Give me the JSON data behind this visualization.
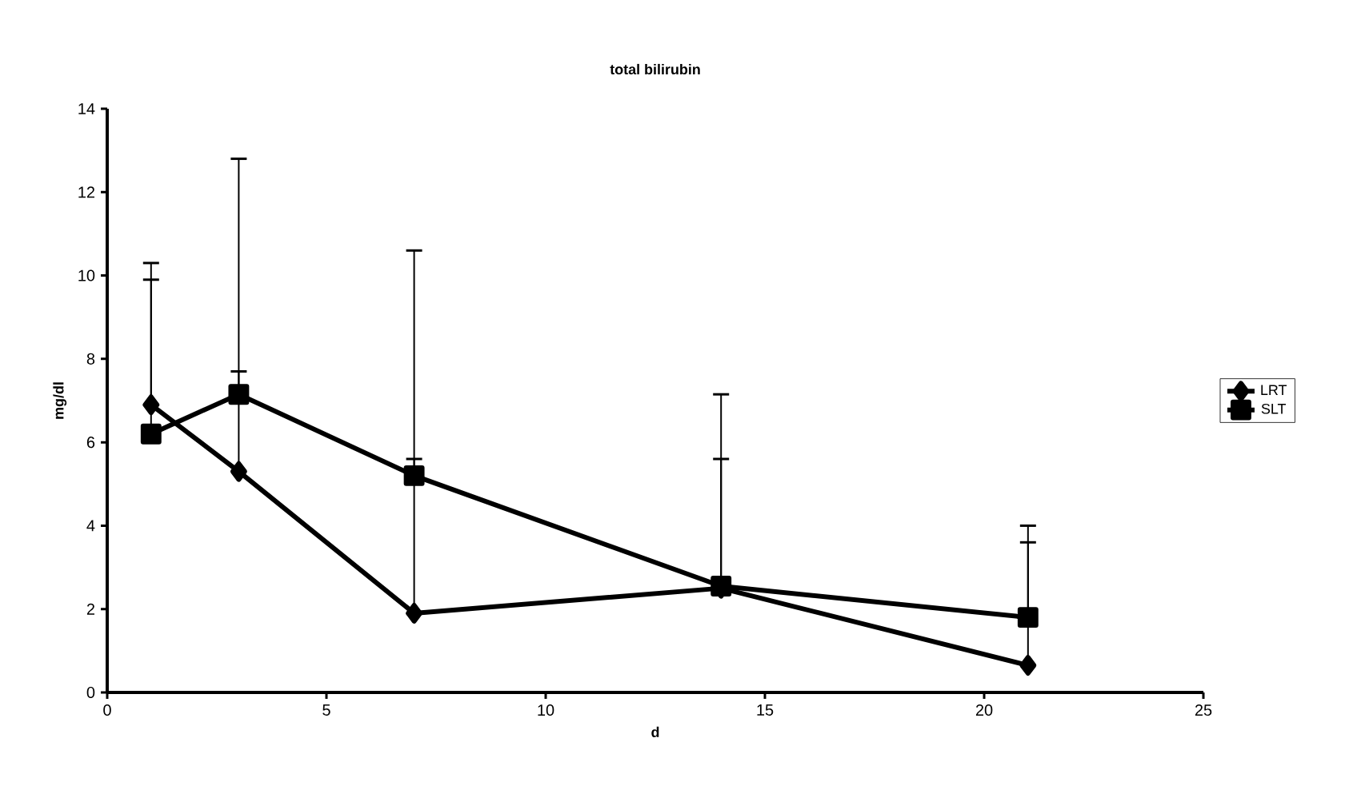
{
  "chart_data": {
    "type": "line",
    "title": "total bilirubin",
    "xlabel": "d",
    "ylabel": "mg/dl",
    "x": [
      1,
      3,
      7,
      14,
      21
    ],
    "xlim": [
      0,
      25
    ],
    "xticks": [
      0,
      5,
      10,
      15,
      20,
      25
    ],
    "ylim": [
      0,
      14
    ],
    "yticks": [
      0,
      2,
      4,
      6,
      8,
      10,
      12,
      14
    ],
    "grid": false,
    "legend": "right",
    "line_style": "solid",
    "series": [
      {
        "name": "LRT",
        "color": "#000000",
        "marker": "diamond",
        "values": [
          6.9,
          5.3,
          1.9,
          2.5,
          0.65
        ],
        "errors": [
          [
            6.9,
            10.3
          ],
          [
            5.3,
            7.7
          ],
          [
            1.9,
            5.6
          ],
          [
            2.5,
            5.6
          ],
          [
            0.65,
            3.6
          ]
        ]
      },
      {
        "name": "SLT",
        "color": "#000000",
        "marker": "square",
        "values": [
          6.2,
          7.15,
          5.2,
          2.55,
          1.8
        ],
        "errors": [
          [
            6.2,
            9.9
          ],
          [
            7.15,
            12.8
          ],
          [
            5.2,
            10.6
          ],
          [
            2.55,
            7.15
          ],
          [
            1.8,
            4.0
          ]
        ]
      }
    ]
  }
}
